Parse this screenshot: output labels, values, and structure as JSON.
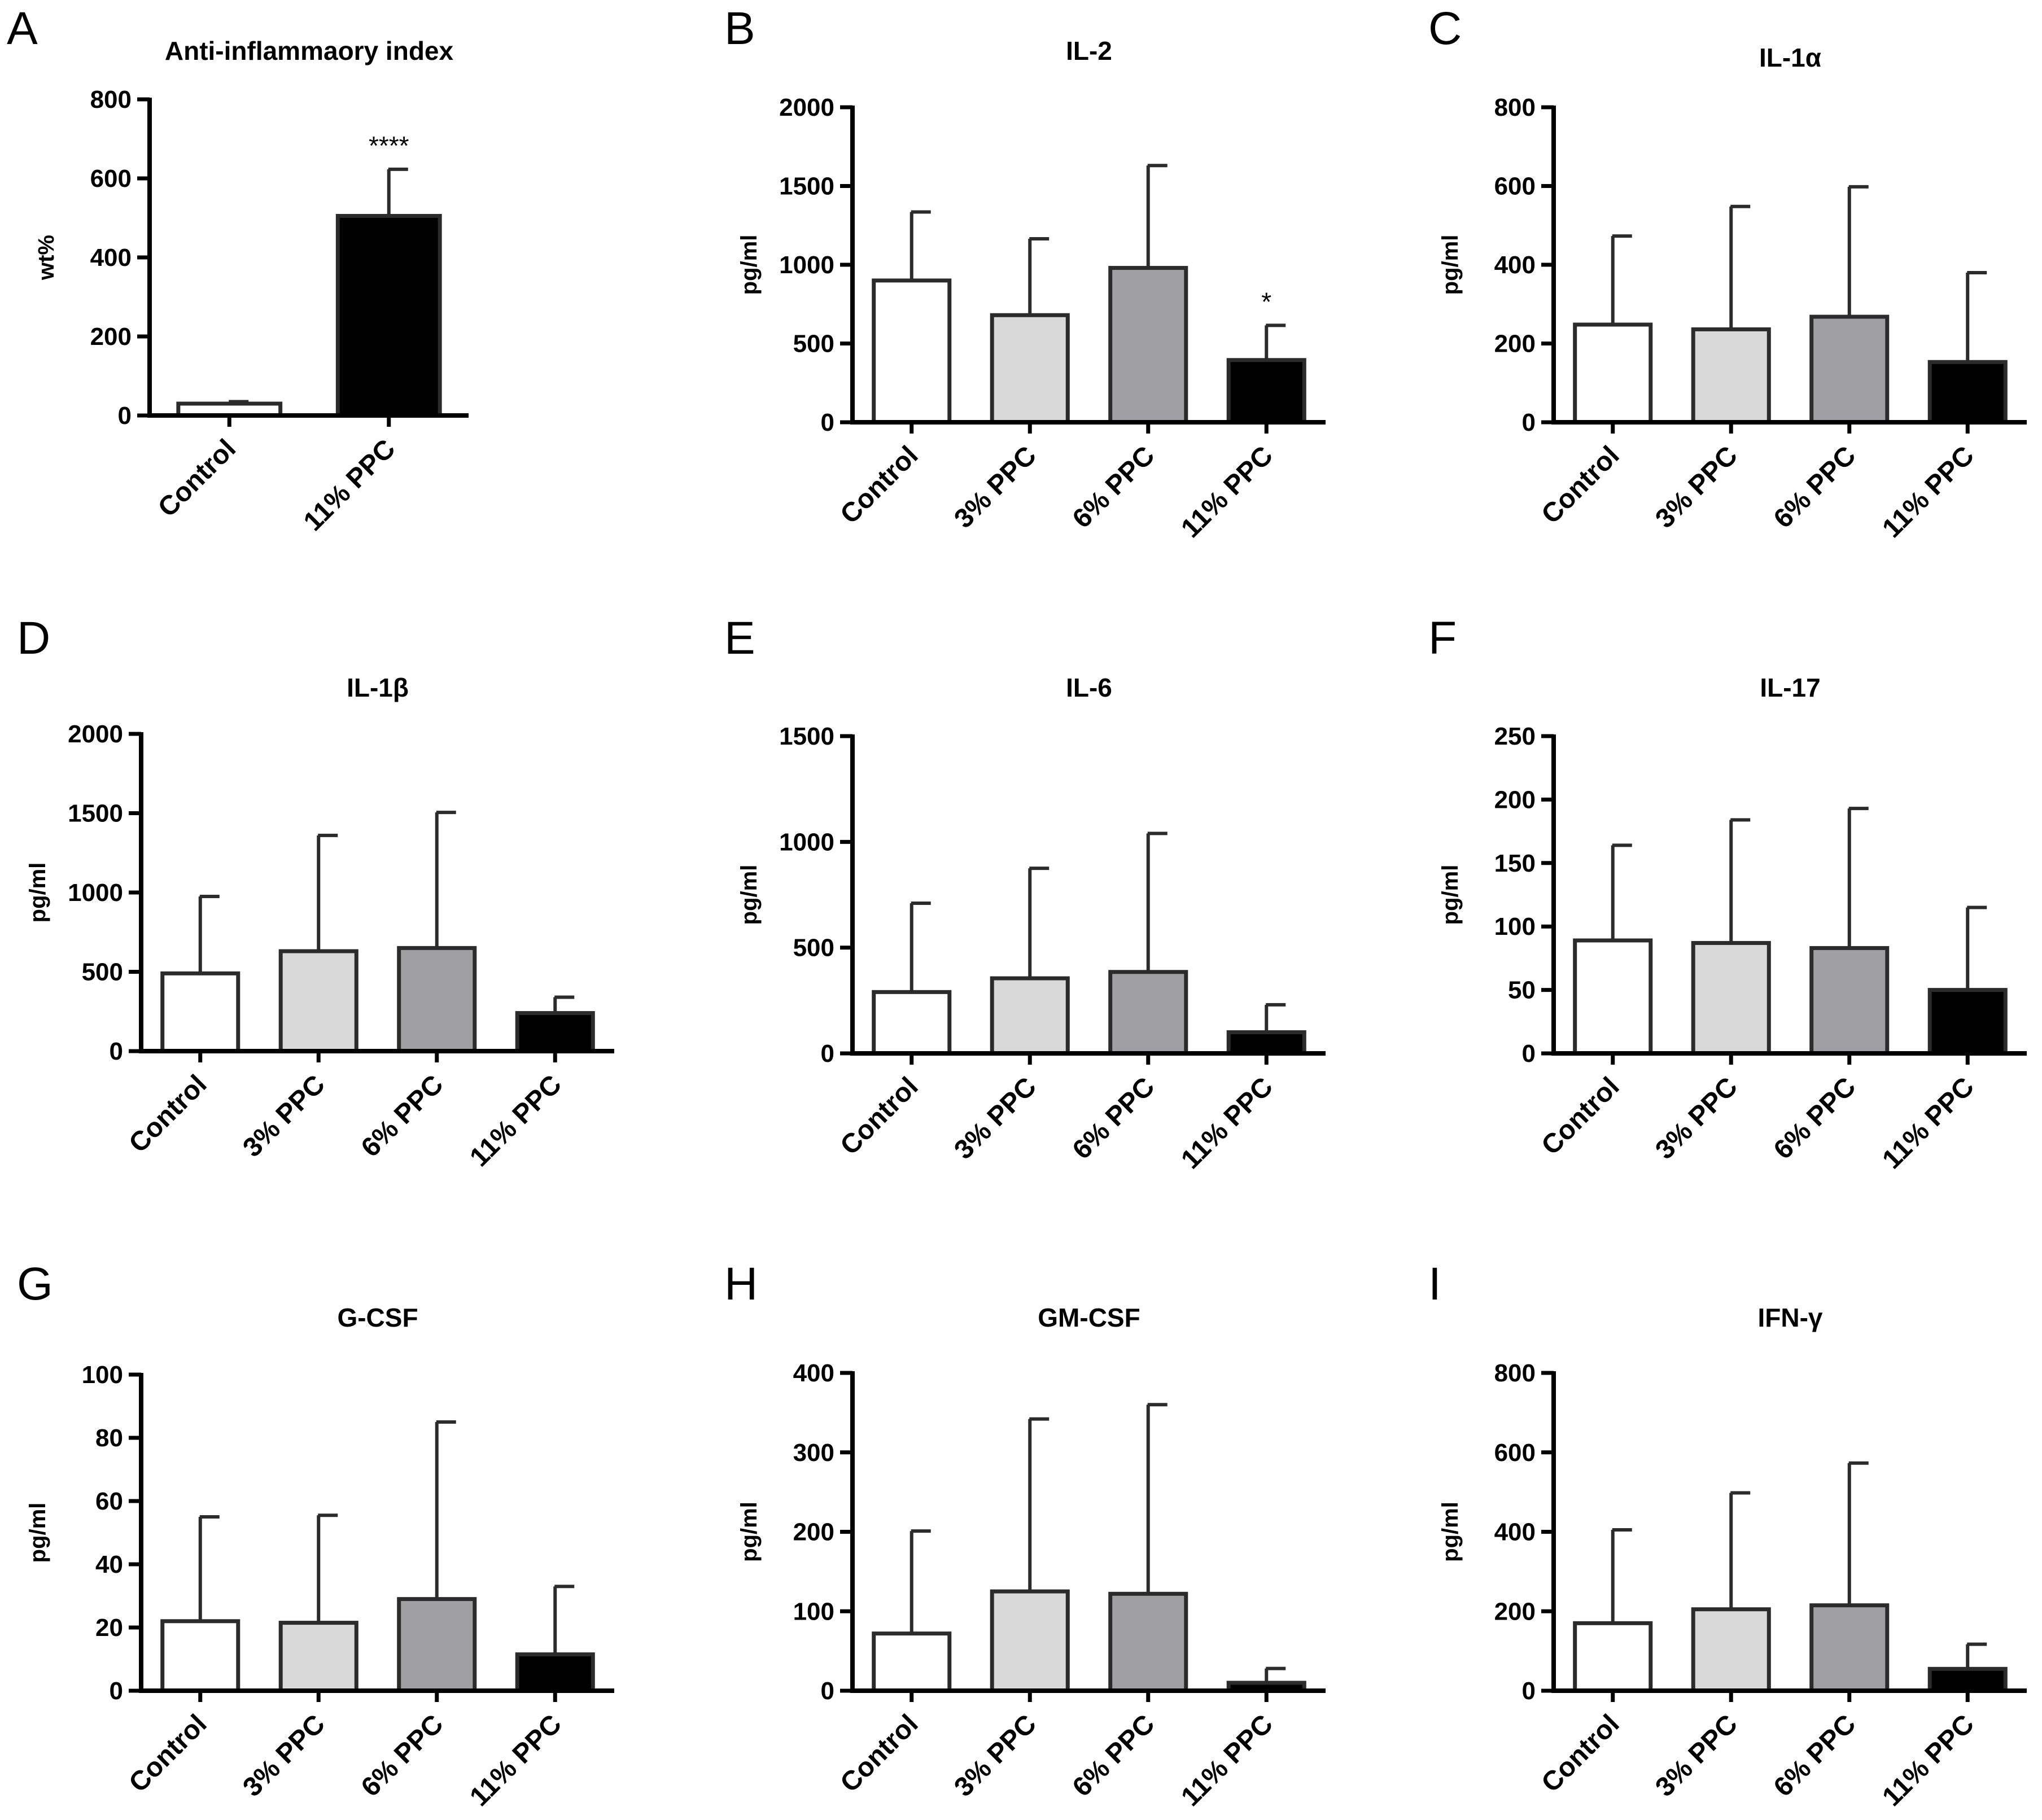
{
  "colors": {
    "Control": "#ffffff",
    "3% PPC": "#d9d9d9",
    "6% PPC": "#a0a0a4",
    "11% PPC": "#000000",
    "outline": "#2b2b2b"
  },
  "chart_data": [
    {
      "panel": "A",
      "type": "bar",
      "title": "Anti-inflammaory index",
      "xlabel": "",
      "ylabel": "wt%",
      "ylim": [
        0,
        800
      ],
      "yticks": [
        "0",
        "200",
        "400",
        "600",
        "800"
      ],
      "categories": [
        "Control",
        "11% PPC"
      ],
      "values": [
        30,
        505
      ],
      "errors": [
        5,
        118
      ],
      "annotations": [
        {
          "category": "11% PPC",
          "text": "****"
        }
      ]
    },
    {
      "panel": "B",
      "type": "bar",
      "title": "IL-2",
      "xlabel": "",
      "ylabel": "pg/ml",
      "ylim": [
        0,
        2000
      ],
      "yticks": [
        "0",
        "500",
        "1000",
        "1500",
        "2000"
      ],
      "categories": [
        "Control",
        "3% PPC",
        "6% PPC",
        "11% PPC"
      ],
      "values": [
        900,
        680,
        980,
        395
      ],
      "errors": [
        435,
        485,
        650,
        220
      ],
      "annotations": [
        {
          "category": "11% PPC",
          "text": "*"
        }
      ]
    },
    {
      "panel": "C",
      "type": "bar",
      "title": "IL-1α",
      "xlabel": "",
      "ylabel": "pg/ml",
      "ylim": [
        0,
        800
      ],
      "yticks": [
        "0",
        "200",
        "400",
        "600",
        "800"
      ],
      "categories": [
        "Control",
        "3% PPC",
        "6% PPC",
        "11% PPC"
      ],
      "values": [
        248,
        236,
        268,
        153
      ],
      "errors": [
        225,
        312,
        330,
        227
      ],
      "annotations": []
    },
    {
      "panel": "D",
      "type": "bar",
      "title": "IL-1β",
      "xlabel": "",
      "ylabel": "pg/ml",
      "ylim": [
        0,
        2000
      ],
      "yticks": [
        "0",
        "500",
        "1000",
        "1500",
        "2000"
      ],
      "categories": [
        "Control",
        "3% PPC",
        "6% PPC",
        "11% PPC"
      ],
      "values": [
        490,
        630,
        650,
        240
      ],
      "errors": [
        485,
        730,
        855,
        100
      ],
      "annotations": []
    },
    {
      "panel": "E",
      "type": "bar",
      "title": "IL-6",
      "xlabel": "",
      "ylabel": "pg/ml",
      "ylim": [
        0,
        1500
      ],
      "yticks": [
        "0",
        "500",
        "1000",
        "1500"
      ],
      "categories": [
        "Control",
        "3% PPC",
        "6% PPC",
        "11% PPC"
      ],
      "values": [
        290,
        355,
        385,
        100
      ],
      "errors": [
        420,
        520,
        655,
        130
      ],
      "annotations": []
    },
    {
      "panel": "F",
      "type": "bar",
      "title": "IL-17",
      "xlabel": "",
      "ylabel": "pg/ml",
      "ylim": [
        0,
        250
      ],
      "yticks": [
        "0",
        "50",
        "100",
        "150",
        "200",
        "250"
      ],
      "categories": [
        "Control",
        "3% PPC",
        "6% PPC",
        "11% PPC"
      ],
      "values": [
        89,
        87,
        83,
        50
      ],
      "errors": [
        75,
        97,
        110,
        65
      ],
      "annotations": []
    },
    {
      "panel": "G",
      "type": "bar",
      "title": "G-CSF",
      "xlabel": "",
      "ylabel": "pg/ml",
      "ylim": [
        0,
        100
      ],
      "yticks": [
        "0",
        "20",
        "40",
        "60",
        "80",
        "100"
      ],
      "categories": [
        "Control",
        "3% PPC",
        "6% PPC",
        "11% PPC"
      ],
      "values": [
        22,
        21.5,
        29,
        11.5
      ],
      "errors": [
        33,
        34,
        56,
        21.5
      ],
      "annotations": []
    },
    {
      "panel": "H",
      "type": "bar",
      "title": "GM-CSF",
      "xlabel": "",
      "ylabel": "pg/ml",
      "ylim": [
        0,
        400
      ],
      "yticks": [
        "0",
        "100",
        "200",
        "300",
        "400"
      ],
      "categories": [
        "Control",
        "3% PPC",
        "6% PPC",
        "11% PPC"
      ],
      "values": [
        72,
        125,
        122,
        10
      ],
      "errors": [
        129,
        217,
        238,
        18
      ],
      "annotations": []
    },
    {
      "panel": "I",
      "type": "bar",
      "title": "IFN-γ",
      "xlabel": "",
      "ylabel": "pg/ml",
      "ylim": [
        0,
        800
      ],
      "yticks": [
        "0",
        "200",
        "400",
        "600",
        "800"
      ],
      "categories": [
        "Control",
        "3% PPC",
        "6% PPC",
        "11% PPC"
      ],
      "values": [
        170,
        205,
        215,
        55
      ],
      "errors": [
        235,
        293,
        358,
        62
      ],
      "annotations": []
    }
  ]
}
